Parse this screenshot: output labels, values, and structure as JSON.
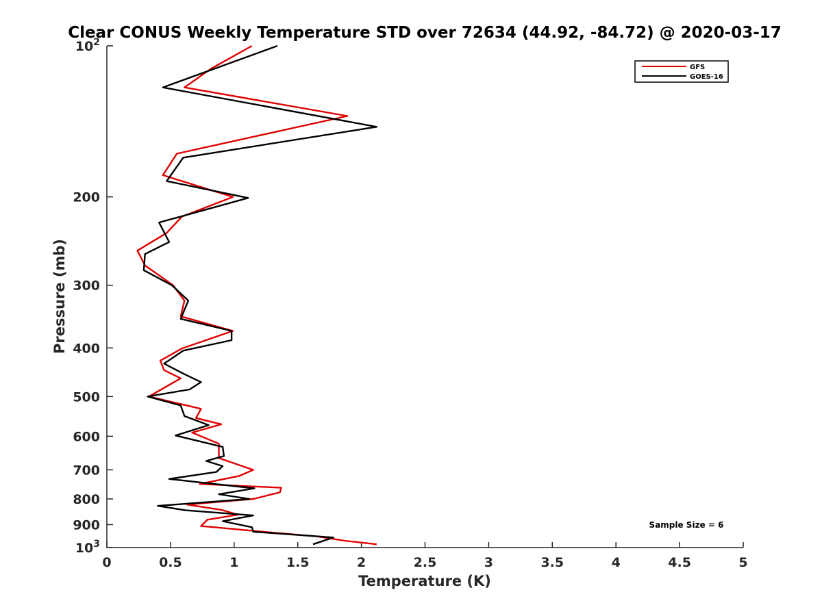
{
  "chart_data": {
    "type": "line",
    "title": "Clear CONUS Weekly Temperature STD over 72634 (44.92, -84.72) @ 2020-03-17",
    "xlabel": "Temperature (K)",
    "ylabel": "Pressure (mb)",
    "xlim": [
      0,
      5
    ],
    "ylim": [
      100,
      1000
    ],
    "yscale": "log",
    "y_reversed": true,
    "grid": false,
    "legend_position": "top-right",
    "x_ticks": [
      {
        "value": 0,
        "label": "0"
      },
      {
        "value": 0.5,
        "label": "0.5"
      },
      {
        "value": 1,
        "label": "1"
      },
      {
        "value": 1.5,
        "label": "1.5"
      },
      {
        "value": 2,
        "label": "2"
      },
      {
        "value": 2.5,
        "label": "2.5"
      },
      {
        "value": 3,
        "label": "3"
      },
      {
        "value": 3.5,
        "label": "3.5"
      },
      {
        "value": 4,
        "label": "4"
      },
      {
        "value": 4.5,
        "label": "4.5"
      },
      {
        "value": 5,
        "label": "5"
      }
    ],
    "y_ticks": [
      {
        "value": 100,
        "base": "10",
        "exp": "2"
      },
      {
        "value": 200,
        "label": "200"
      },
      {
        "value": 300,
        "label": "300"
      },
      {
        "value": 400,
        "label": "400"
      },
      {
        "value": 500,
        "label": "500"
      },
      {
        "value": 600,
        "label": "600"
      },
      {
        "value": 700,
        "label": "700"
      },
      {
        "value": 800,
        "label": "800"
      },
      {
        "value": 900,
        "label": "900"
      },
      {
        "value": 1000,
        "base": "10",
        "exp": "3"
      }
    ],
    "annotation": "Sample Size = 6",
    "series": [
      {
        "name": "GFS",
        "color": "#e00000",
        "points": [
          [
            1.14,
            100
          ],
          [
            0.82,
            111
          ],
          [
            0.61,
            121
          ],
          [
            1.89,
            138
          ],
          [
            0.55,
            164
          ],
          [
            0.44,
            181
          ],
          [
            0.99,
            200
          ],
          [
            0.59,
            219
          ],
          [
            0.47,
            236
          ],
          [
            0.24,
            256
          ],
          [
            0.3,
            274
          ],
          [
            0.52,
            300
          ],
          [
            0.61,
            322
          ],
          [
            0.58,
            346
          ],
          [
            0.99,
            370
          ],
          [
            0.59,
            401
          ],
          [
            0.42,
            424
          ],
          [
            0.45,
            443
          ],
          [
            0.58,
            460
          ],
          [
            0.33,
            500
          ],
          [
            0.74,
            529
          ],
          [
            0.7,
            552
          ],
          [
            0.9,
            568
          ],
          [
            0.67,
            590
          ],
          [
            0.88,
            621
          ],
          [
            0.88,
            663
          ],
          [
            1.15,
            700
          ],
          [
            1.04,
            720
          ],
          [
            0.73,
            747
          ],
          [
            1.37,
            760
          ],
          [
            1.36,
            776
          ],
          [
            1.15,
            800
          ],
          [
            0.63,
            821
          ],
          [
            0.9,
            841
          ],
          [
            1.03,
            860
          ],
          [
            0.79,
            880
          ],
          [
            0.74,
            906
          ],
          [
            1.23,
            930
          ],
          [
            1.65,
            950
          ],
          [
            1.88,
            970
          ],
          [
            2.12,
            985
          ]
        ]
      },
      {
        "name": "GOES-16",
        "color": "#000000",
        "points": [
          [
            1.34,
            100
          ],
          [
            0.44,
            121
          ],
          [
            2.12,
            145
          ],
          [
            0.6,
            167
          ],
          [
            0.47,
            186
          ],
          [
            1.11,
            201
          ],
          [
            0.41,
            225
          ],
          [
            0.49,
            246
          ],
          [
            0.3,
            260
          ],
          [
            0.29,
            280
          ],
          [
            0.51,
            300
          ],
          [
            0.64,
            322
          ],
          [
            0.58,
            350
          ],
          [
            0.98,
            370
          ],
          [
            0.98,
            386
          ],
          [
            0.6,
            405
          ],
          [
            0.45,
            430
          ],
          [
            0.6,
            450
          ],
          [
            0.74,
            468
          ],
          [
            0.65,
            484
          ],
          [
            0.32,
            500
          ],
          [
            0.58,
            521
          ],
          [
            0.61,
            547
          ],
          [
            0.8,
            570
          ],
          [
            0.54,
            598
          ],
          [
            0.91,
            630
          ],
          [
            0.92,
            657
          ],
          [
            0.78,
            672
          ],
          [
            0.91,
            688
          ],
          [
            0.86,
            707
          ],
          [
            0.49,
            730
          ],
          [
            1.16,
            762
          ],
          [
            0.88,
            783
          ],
          [
            1.12,
            800
          ],
          [
            0.4,
            826
          ],
          [
            0.62,
            843
          ],
          [
            1.15,
            863
          ],
          [
            0.91,
            886
          ],
          [
            1.14,
            911
          ],
          [
            1.15,
            930
          ],
          [
            1.78,
            955
          ],
          [
            1.62,
            985
          ]
        ]
      }
    ]
  }
}
